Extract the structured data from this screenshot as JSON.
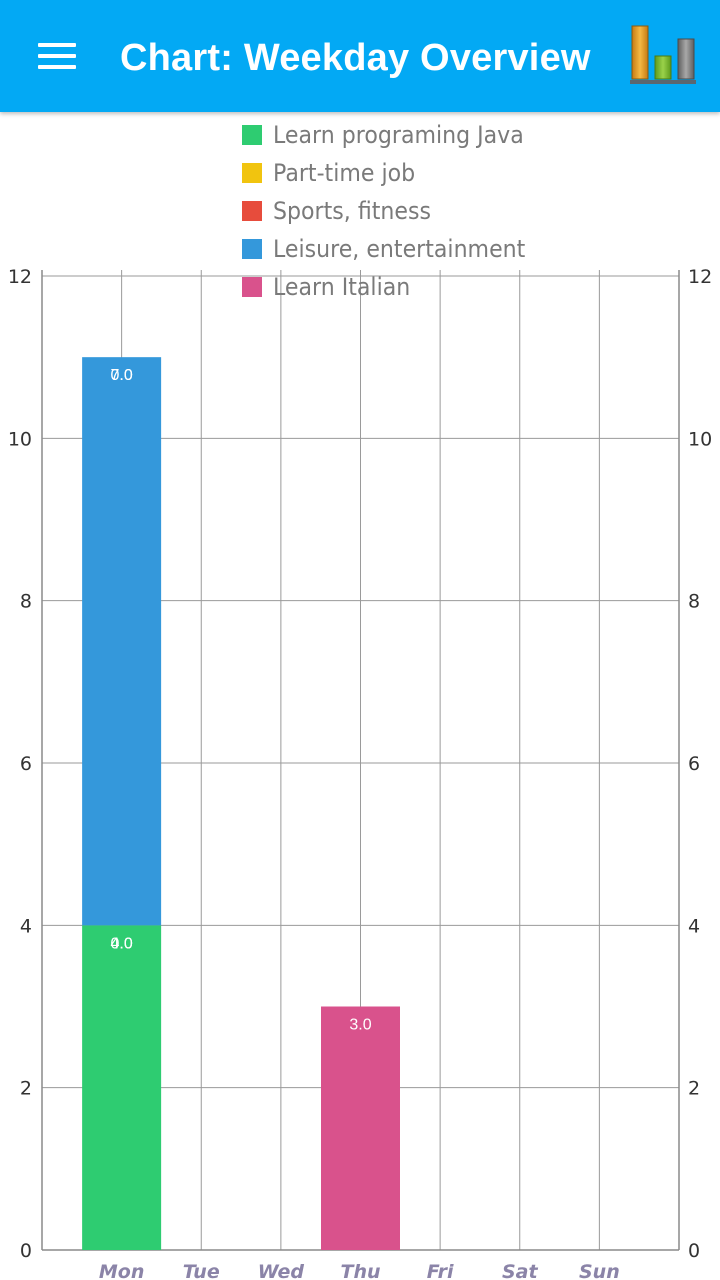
{
  "header": {
    "title": "Chart: Weekday Overview",
    "menu_icon": "hamburger-menu-icon",
    "chart_icon": "bar-chart-icon",
    "background_color": "#03a9f4"
  },
  "chart_data": {
    "type": "bar",
    "stacked": true,
    "categories": [
      "Mon",
      "Tue",
      "Wed",
      "Thu",
      "Fri",
      "Sat",
      "Sun"
    ],
    "series": [
      {
        "name": "Learn programing Java",
        "color": "#2ecc71",
        "values": [
          4.0,
          0,
          0,
          0,
          0,
          0,
          0
        ]
      },
      {
        "name": "Part-time job",
        "color": "#f1c40f",
        "values": [
          0,
          0,
          0,
          0,
          0,
          0,
          0
        ]
      },
      {
        "name": "Sports, fitness",
        "color": "#e74c3c",
        "values": [
          0,
          0,
          0,
          0,
          0,
          0,
          0
        ]
      },
      {
        "name": "Leisure, entertainment",
        "color": "#3498db",
        "values": [
          7.0,
          0,
          0,
          0,
          0,
          0,
          0
        ]
      },
      {
        "name": "Learn Italian",
        "color": "#d9528c",
        "values": [
          0,
          0,
          0,
          3.0,
          0,
          0,
          0
        ]
      }
    ],
    "data_labels": [
      {
        "text": "7.0",
        "category": "Mon",
        "at_value": 11
      },
      {
        "text": "0.0",
        "category": "Mon",
        "at_value": 11
      },
      {
        "text": "4.0",
        "category": "Mon",
        "at_value": 4
      },
      {
        "text": "0.0",
        "category": "Mon",
        "at_value": 4
      },
      {
        "text": "3.0",
        "category": "Thu",
        "at_value": 3
      }
    ],
    "ylim": [
      0,
      12
    ],
    "yticks": [
      "0",
      "2",
      "4",
      "6",
      "8",
      "10",
      "12"
    ],
    "ytick_values": [
      0,
      2,
      4,
      6,
      8,
      10,
      12
    ],
    "secondary_y_axis": true,
    "grid": true,
    "legend_position": "top-center"
  }
}
